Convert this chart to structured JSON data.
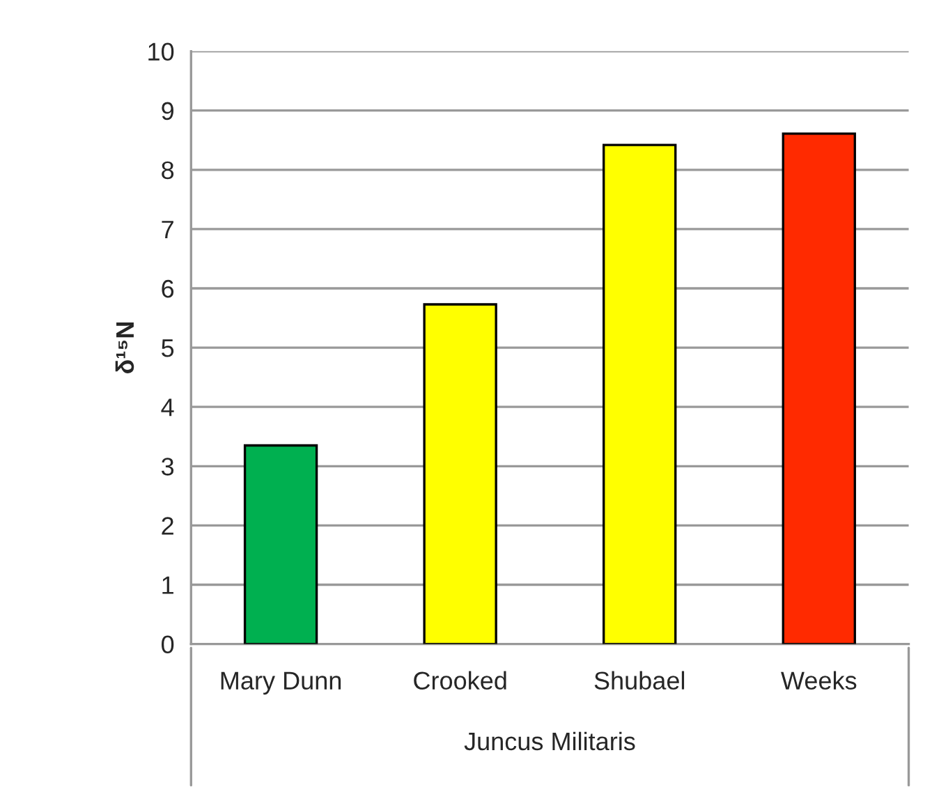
{
  "chart_data": {
    "type": "bar",
    "ylabel": "δ¹⁵N",
    "xlabel": "Juncus Militaris",
    "categories": [
      "Mary Dunn",
      "Crooked",
      "Shubael",
      "Weeks"
    ],
    "values": [
      3.35,
      5.73,
      8.42,
      8.61
    ],
    "colors": [
      "#00b050",
      "#ffff00",
      "#ffff00",
      "#ff2a00"
    ],
    "ylim": [
      0,
      10
    ],
    "yticks": [
      0,
      1,
      2,
      3,
      4,
      5,
      6,
      7,
      8,
      9,
      10
    ],
    "grid": "y",
    "legend": false
  }
}
